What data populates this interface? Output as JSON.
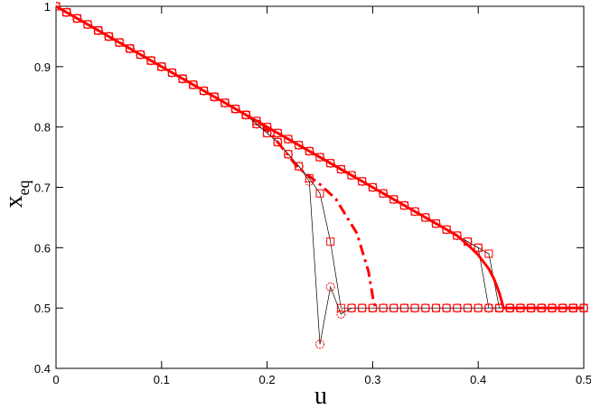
{
  "chart_data": {
    "type": "line",
    "xlabel": "u",
    "ylabel": "x",
    "ylabel_sub": "eq",
    "xlim": [
      0,
      0.5
    ],
    "ylim": [
      0.4,
      1
    ],
    "xticks": [
      0,
      0.1,
      0.2,
      0.3,
      0.4,
      0.5
    ],
    "yticks": [
      0.4,
      0.5,
      0.6,
      0.7,
      0.8,
      0.9,
      1
    ],
    "x": [
      0,
      0.01,
      0.02,
      0.03,
      0.04,
      0.05,
      0.06,
      0.07,
      0.08,
      0.09,
      0.1,
      0.11,
      0.12,
      0.13,
      0.14,
      0.15,
      0.16,
      0.17,
      0.18,
      0.19,
      0.2,
      0.21,
      0.22,
      0.23,
      0.24,
      0.25,
      0.26,
      0.27,
      0.28,
      0.29,
      0.3,
      0.31,
      0.32,
      0.33,
      0.34,
      0.35,
      0.36,
      0.37,
      0.38,
      0.39,
      0.4,
      0.41,
      0.42,
      0.43,
      0.44,
      0.45,
      0.46,
      0.47,
      0.48,
      0.49,
      0.5
    ],
    "series": [
      {
        "marker": "circle",
        "color": "#ff0000",
        "line_color": "#000000",
        "values": [
          1,
          0.99,
          0.98,
          0.97,
          0.96,
          0.95,
          0.94,
          0.93,
          0.92,
          0.91,
          0.9,
          0.89,
          0.88,
          0.87,
          0.86,
          0.85,
          0.84,
          0.83,
          0.82,
          0.81,
          0.8,
          0.79,
          0.78,
          0.77,
          0.76,
          0.75,
          0.74,
          0.73,
          0.72,
          0.71,
          0.7,
          0.69,
          0.68,
          0.67,
          0.66,
          0.65,
          0.64,
          0.63,
          0.62,
          0.61,
          0.6,
          0.5,
          0.5,
          0.5,
          0.5,
          0.5,
          0.5,
          0.5,
          0.5,
          0.5,
          0.5
        ]
      },
      {
        "marker": "square",
        "color": "#ff0000",
        "line_color": "#000000",
        "values": [
          1,
          0.99,
          0.98,
          0.97,
          0.96,
          0.95,
          0.94,
          0.93,
          0.92,
          0.91,
          0.9,
          0.89,
          0.88,
          0.87,
          0.86,
          0.85,
          0.84,
          0.83,
          0.82,
          0.81,
          0.8,
          0.79,
          0.78,
          0.77,
          0.76,
          0.75,
          0.74,
          0.73,
          0.72,
          0.71,
          0.7,
          0.69,
          0.68,
          0.67,
          0.66,
          0.65,
          0.64,
          0.63,
          0.62,
          0.61,
          0.6,
          0.59,
          0.5,
          0.5,
          0.5,
          0.5,
          0.5,
          0.5,
          0.5,
          0.5,
          0.5
        ]
      },
      {
        "marker": "square",
        "color": "#ff0000",
        "line_color": "#000000",
        "values": [
          1,
          0.99,
          0.98,
          0.97,
          0.96,
          0.95,
          0.94,
          0.93,
          0.92,
          0.91,
          0.9,
          0.89,
          0.88,
          0.87,
          0.86,
          0.85,
          0.84,
          0.83,
          0.82,
          0.805,
          0.79,
          0.775,
          0.755,
          0.735,
          0.715,
          0.69,
          0.61,
          0.5,
          0.5,
          0.5,
          0.5,
          0.5,
          0.5,
          0.5,
          0.5,
          0.5,
          0.5,
          0.5,
          0.5,
          0.5,
          0.5,
          0.5,
          0.5,
          0.5,
          0.5,
          0.5,
          0.5,
          0.5,
          0.5,
          0.5,
          0.5
        ]
      },
      {
        "marker": "circle",
        "color": "#ff0000",
        "line_color": "#000000",
        "values": [
          1,
          0.99,
          0.98,
          0.97,
          0.96,
          0.95,
          0.94,
          0.93,
          0.92,
          0.91,
          0.9,
          0.89,
          0.88,
          0.87,
          0.86,
          0.85,
          0.84,
          0.83,
          0.82,
          0.805,
          0.79,
          0.775,
          0.755,
          0.735,
          0.71,
          0.44,
          0.535,
          0.49,
          0.5,
          0.5,
          0.5,
          0.5,
          0.5,
          0.5,
          0.5,
          0.5,
          0.5,
          0.5,
          0.5,
          0.5,
          0.5,
          0.5,
          0.5,
          0.5,
          0.5,
          0.5,
          0.5,
          0.5,
          0.5,
          0.5,
          0.5
        ]
      },
      {
        "style": "solid",
        "color": "#ff0000",
        "x": [
          0,
          0.1,
          0.2,
          0.3,
          0.38,
          0.39,
          0.4,
          0.41,
          0.415,
          0.42,
          0.424,
          0.43,
          0.5
        ],
        "values": [
          1,
          0.9,
          0.8,
          0.7,
          0.62,
          0.605,
          0.588,
          0.565,
          0.548,
          0.525,
          0.5,
          0.5,
          0.5
        ]
      },
      {
        "style": "dashdot",
        "color": "#ff0000",
        "x": [
          0.195,
          0.21,
          0.229,
          0.25,
          0.265,
          0.285,
          0.296,
          0.301,
          0.303
        ],
        "values": [
          0.805,
          0.775,
          0.733,
          0.705,
          0.681,
          0.624,
          0.561,
          0.509,
          0.5
        ]
      }
    ]
  }
}
